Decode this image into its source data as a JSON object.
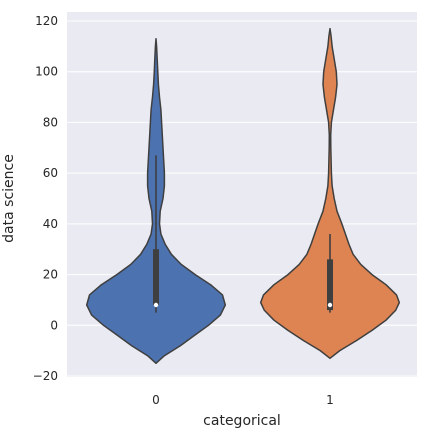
{
  "chart_data": {
    "type": "violin",
    "xlabel": "categorical",
    "ylabel": "data science",
    "ylim": [
      -20,
      120
    ],
    "yticks": [
      -20,
      0,
      20,
      40,
      60,
      80,
      100,
      120
    ],
    "categories": [
      "0",
      "1"
    ],
    "grid": true,
    "background": "#EAEAF2",
    "colors": [
      "#4C72B0",
      "#DD8452"
    ],
    "violins": [
      {
        "category": "0",
        "min": -15,
        "max": 113,
        "q1": 8,
        "median": 8,
        "q3": 30,
        "whisker_low": 5,
        "whisker_high": 67,
        "profile": [
          [
            -15,
            0.0
          ],
          [
            -12,
            0.12
          ],
          [
            -8,
            0.35
          ],
          [
            -4,
            0.55
          ],
          [
            0,
            0.75
          ],
          [
            4,
            0.92
          ],
          [
            8,
            0.99
          ],
          [
            12,
            0.95
          ],
          [
            16,
            0.78
          ],
          [
            20,
            0.56
          ],
          [
            24,
            0.36
          ],
          [
            28,
            0.22
          ],
          [
            32,
            0.13
          ],
          [
            36,
            0.07
          ],
          [
            40,
            0.05
          ],
          [
            45,
            0.06
          ],
          [
            50,
            0.1
          ],
          [
            55,
            0.12
          ],
          [
            60,
            0.12
          ],
          [
            65,
            0.11
          ],
          [
            70,
            0.1
          ],
          [
            75,
            0.09
          ],
          [
            80,
            0.08
          ],
          [
            85,
            0.07
          ],
          [
            90,
            0.05
          ],
          [
            95,
            0.035
          ],
          [
            100,
            0.025
          ],
          [
            105,
            0.017
          ],
          [
            110,
            0.008
          ],
          [
            113,
            0.0
          ]
        ]
      },
      {
        "category": "1",
        "min": -13,
        "max": 117,
        "q1": 6,
        "median": 8,
        "q3": 26,
        "whisker_low": 5,
        "whisker_high": 36,
        "profile": [
          [
            -13,
            0.0
          ],
          [
            -10,
            0.14
          ],
          [
            -6,
            0.38
          ],
          [
            -2,
            0.6
          ],
          [
            2,
            0.8
          ],
          [
            6,
            0.94
          ],
          [
            9,
            0.99
          ],
          [
            12,
            0.95
          ],
          [
            16,
            0.8
          ],
          [
            20,
            0.6
          ],
          [
            24,
            0.44
          ],
          [
            28,
            0.33
          ],
          [
            32,
            0.27
          ],
          [
            36,
            0.22
          ],
          [
            40,
            0.17
          ],
          [
            45,
            0.1
          ],
          [
            50,
            0.06
          ],
          [
            55,
            0.03
          ],
          [
            60,
            0.02
          ],
          [
            65,
            0.015
          ],
          [
            70,
            0.012
          ],
          [
            75,
            0.01
          ],
          [
            80,
            0.02
          ],
          [
            85,
            0.05
          ],
          [
            90,
            0.08
          ],
          [
            95,
            0.1
          ],
          [
            100,
            0.09
          ],
          [
            105,
            0.06
          ],
          [
            110,
            0.03
          ],
          [
            114,
            0.015
          ],
          [
            117,
            0.0
          ]
        ]
      }
    ]
  }
}
